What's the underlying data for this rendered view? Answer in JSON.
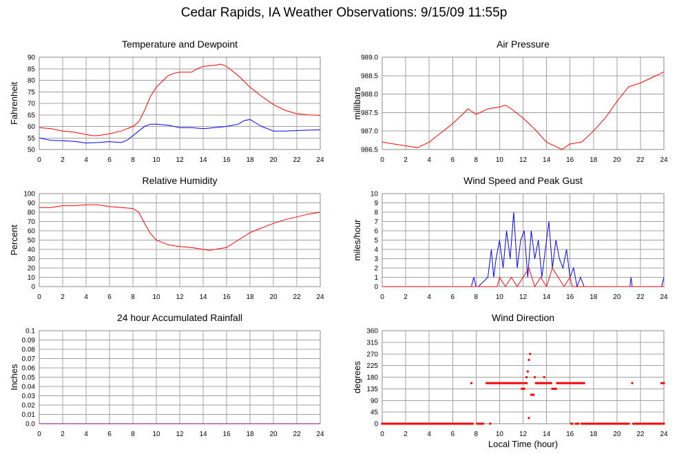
{
  "title": "Cedar Rapids, IA Weather Observations: 9/15/09 11:55p",
  "colors": {
    "red": "#ff0000",
    "blue": "#0000ff",
    "purple": "#7f007f",
    "grid": "#a0a0a0"
  },
  "chart_data": [
    {
      "id": "temp",
      "type": "line",
      "title": "Temperature and Dewpoint",
      "ylabel": "Fahrenheit",
      "xlabel": "",
      "xlim": [
        0,
        24
      ],
      "ylim": [
        50,
        90
      ],
      "xticks": [
        "0",
        "2",
        "4",
        "6",
        "8",
        "10",
        "12",
        "14",
        "16",
        "18",
        "20",
        "22",
        "24"
      ],
      "yticks": [
        "50",
        "55",
        "60",
        "65",
        "70",
        "75",
        "80",
        "85",
        "90"
      ],
      "grid": true,
      "series": [
        {
          "color": "#ff0000",
          "x": [
            0,
            1,
            2,
            3,
            4,
            4.5,
            5,
            6,
            7,
            8,
            8.5,
            9,
            9.5,
            10,
            11,
            11.5,
            12,
            13,
            13.5,
            14,
            15,
            15.5,
            16,
            17,
            18,
            19,
            20,
            21,
            22,
            23,
            24
          ],
          "y": [
            59.5,
            59,
            58,
            57.5,
            56.5,
            56,
            56,
            56.8,
            58,
            60,
            62,
            67,
            73,
            77,
            82,
            83,
            83.5,
            83.5,
            85,
            86,
            86.5,
            87,
            86,
            82,
            77,
            73,
            69.5,
            67,
            65.5,
            65,
            64.8
          ]
        },
        {
          "color": "#0000ff",
          "x": [
            0,
            1,
            2,
            3,
            4,
            5,
            6,
            7,
            7.5,
            8,
            8.5,
            9,
            9.5,
            10,
            11,
            12,
            13,
            14,
            15,
            16,
            17,
            17.5,
            18,
            18.5,
            19,
            20,
            21,
            22,
            23,
            24
          ],
          "y": [
            55,
            54,
            53.8,
            53.5,
            52.8,
            53,
            53.4,
            53,
            54,
            56,
            58,
            60,
            61,
            61,
            60.5,
            59.5,
            59.5,
            59,
            59.5,
            60,
            61,
            62.5,
            63,
            61.5,
            60,
            58,
            58,
            58.2,
            58.4,
            58.5
          ]
        }
      ]
    },
    {
      "id": "pressure",
      "type": "line",
      "title": "Air Pressure",
      "ylabel": "millibars",
      "xlabel": "",
      "xlim": [
        0,
        24
      ],
      "ylim": [
        986.5,
        989.0
      ],
      "xticks": [
        "0",
        "2",
        "4",
        "6",
        "8",
        "10",
        "12",
        "14",
        "16",
        "18",
        "20",
        "22",
        "24"
      ],
      "yticks": [
        "986.5",
        "987.0",
        "987.5",
        "988.0",
        "988.5",
        "989.0"
      ],
      "grid": true,
      "series": [
        {
          "color": "#ff0000",
          "x": [
            0,
            1,
            2,
            3,
            4,
            5,
            6,
            7,
            7.3,
            8,
            9,
            10,
            10.5,
            11,
            12,
            13,
            14,
            15,
            15.3,
            16,
            17,
            18,
            19,
            20,
            21,
            22,
            23,
            24
          ],
          "y": [
            986.7,
            986.65,
            986.6,
            986.55,
            986.7,
            986.95,
            987.2,
            987.5,
            987.6,
            987.45,
            987.6,
            987.65,
            987.7,
            987.6,
            987.35,
            987.05,
            986.7,
            986.55,
            986.5,
            986.65,
            986.7,
            987.0,
            987.35,
            987.8,
            988.2,
            988.3,
            988.45,
            988.6
          ]
        }
      ]
    },
    {
      "id": "rh",
      "type": "line",
      "title": "Relative Humidity",
      "ylabel": "Percent",
      "xlabel": "",
      "xlim": [
        0,
        24
      ],
      "ylim": [
        0,
        100
      ],
      "xticks": [
        "0",
        "2",
        "4",
        "6",
        "8",
        "10",
        "12",
        "14",
        "16",
        "18",
        "20",
        "22",
        "24"
      ],
      "yticks": [
        "0",
        "10",
        "20",
        "30",
        "40",
        "50",
        "60",
        "70",
        "80",
        "90",
        "100"
      ],
      "grid": true,
      "series": [
        {
          "color": "#ff0000",
          "x": [
            0,
            1,
            2,
            3,
            4,
            5,
            6,
            7,
            8,
            8.5,
            9,
            9.5,
            10,
            11,
            12,
            13,
            14,
            14.5,
            15,
            16,
            17,
            18,
            19,
            20,
            21,
            22,
            23,
            24
          ],
          "y": [
            85,
            85,
            87,
            87,
            88,
            88,
            86,
            85,
            84,
            80,
            68,
            57,
            50,
            45,
            43,
            42,
            40,
            39,
            40,
            42,
            50,
            58,
            63,
            68,
            72,
            75,
            78,
            80
          ]
        }
      ]
    },
    {
      "id": "wind",
      "type": "line",
      "title": "Wind Speed and Peak Gust",
      "ylabel": "miles/hour",
      "xlabel": "",
      "xlim": [
        0,
        24
      ],
      "ylim": [
        0,
        10
      ],
      "xticks": [
        "0",
        "2",
        "4",
        "6",
        "8",
        "10",
        "12",
        "14",
        "16",
        "18",
        "20",
        "22",
        "24"
      ],
      "yticks": [
        "0",
        "1",
        "2",
        "3",
        "4",
        "5",
        "6",
        "7",
        "8",
        "9",
        "10"
      ],
      "grid": true,
      "series": [
        {
          "color": "#0000ff",
          "x": [
            0,
            7.6,
            7.8,
            8.0,
            8.2,
            9.0,
            9.3,
            9.5,
            9.7,
            10.0,
            10.3,
            10.6,
            10.9,
            11.2,
            11.5,
            11.8,
            12.1,
            12.4,
            12.7,
            13.0,
            13.3,
            13.6,
            13.9,
            14.2,
            14.5,
            14.8,
            15.1,
            15.4,
            15.7,
            16.0,
            16.3,
            16.6,
            16.9,
            17.2,
            17.5,
            21.1,
            21.2,
            21.3,
            23.8,
            24
          ],
          "y": [
            0,
            0,
            1,
            0,
            0,
            1,
            4,
            1,
            3,
            5,
            2,
            6,
            3,
            8,
            2,
            5,
            6,
            1,
            6,
            3,
            5,
            1,
            4,
            7,
            2,
            5,
            3,
            2,
            4,
            1,
            2,
            0,
            1,
            0,
            0,
            0,
            1,
            0,
            0,
            1
          ]
        },
        {
          "color": "#ff0000",
          "x": [
            0,
            9.8,
            10.0,
            10.5,
            11.0,
            11.5,
            12.0,
            12.5,
            13.0,
            13.5,
            14.0,
            14.5,
            15.0,
            15.5,
            16.0,
            16.2,
            24
          ],
          "y": [
            0,
            0,
            1,
            0,
            1,
            0,
            1,
            2,
            0,
            1,
            0,
            2,
            1,
            0,
            1,
            0,
            0
          ]
        }
      ]
    },
    {
      "id": "rain",
      "type": "line",
      "title": "24 hour Accumulated Rainfall",
      "ylabel": "Inches",
      "xlabel": "",
      "xlim": [
        0,
        24
      ],
      "ylim": [
        0,
        0.1
      ],
      "xticks": [
        "0",
        "2",
        "4",
        "6",
        "8",
        "10",
        "12",
        "14",
        "16",
        "18",
        "20",
        "22",
        "24"
      ],
      "yticks": [
        "0.0",
        "0.01",
        "0.02",
        "0.03",
        "0.04",
        "0.05",
        "0.06",
        "0.07",
        "0.08",
        "0.09",
        "0.1"
      ],
      "grid": true,
      "series": [
        {
          "color": "#7f007f",
          "x": [
            0,
            24
          ],
          "y": [
            0,
            0
          ]
        }
      ]
    },
    {
      "id": "winddir",
      "type": "scatter",
      "title": "Wind Direction",
      "ylabel": "degrees",
      "xlabel": "Local Time (hour)",
      "xlim": [
        0,
        24
      ],
      "ylim": [
        0,
        360
      ],
      "xticks": [
        "0",
        "2",
        "4",
        "6",
        "8",
        "10",
        "12",
        "14",
        "16",
        "18",
        "20",
        "22",
        "24"
      ],
      "yticks": [
        "0",
        "45",
        "90",
        "135",
        "180",
        "225",
        "270",
        "315",
        "360"
      ],
      "grid": true,
      "series": [
        {
          "color": "#ff0000",
          "segments": [
            {
              "x0": 0,
              "x1": 7.7,
              "y": 0
            },
            {
              "x0": 8.1,
              "x1": 8.6,
              "y": 0
            },
            {
              "x0": 9.2,
              "x1": 9.2,
              "y": 0
            },
            {
              "x0": 16.1,
              "x1": 16.2,
              "y": 0
            },
            {
              "x0": 16.5,
              "x1": 16.7,
              "y": 0
            },
            {
              "x0": 17.0,
              "x1": 21.0,
              "y": 0
            },
            {
              "x0": 21.4,
              "x1": 24.0,
              "y": 0
            },
            {
              "x0": 8.9,
              "x1": 11.9,
              "y": 157
            },
            {
              "x0": 12.1,
              "x1": 12.3,
              "y": 157
            },
            {
              "x0": 13.1,
              "x1": 14.3,
              "y": 157
            },
            {
              "x0": 14.9,
              "x1": 16.8,
              "y": 157
            },
            {
              "x0": 16.9,
              "x1": 17.2,
              "y": 157
            },
            {
              "x0": 23.8,
              "x1": 24.0,
              "y": 157
            },
            {
              "x0": 11.9,
              "x1": 12.1,
              "y": 135
            },
            {
              "x0": 14.5,
              "x1": 14.8,
              "y": 135
            },
            {
              "x0": 12.7,
              "x1": 12.9,
              "y": 112
            }
          ],
          "x": [
            7.6,
            12.3,
            12.4,
            12.5,
            12.6,
            12.5,
            13.0,
            13.2,
            13.8,
            21.3,
            14.4
          ],
          "y": [
            157,
            180,
            202,
            247,
            270,
            22,
            180,
            157,
            180,
            157,
            157
          ]
        }
      ]
    }
  ]
}
